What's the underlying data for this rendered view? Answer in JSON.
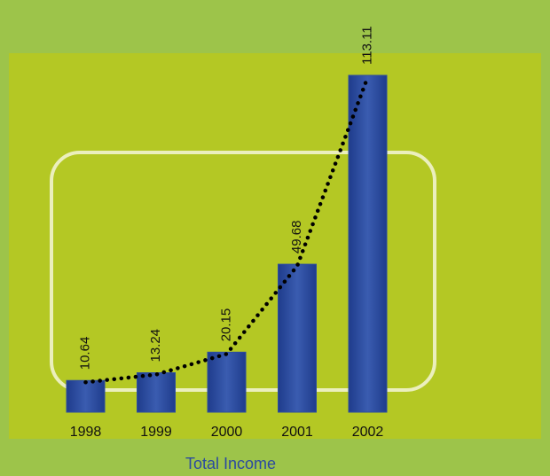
{
  "chart_data": {
    "type": "bar",
    "title": "Total Income",
    "categories": [
      "1998",
      "1999",
      "2000",
      "2001",
      "2002"
    ],
    "values": [
      10.64,
      13.24,
      20.15,
      49.68,
      113.11
    ],
    "color": "#2c4c9f",
    "line_color": "#000000",
    "trend_line": true
  }
}
